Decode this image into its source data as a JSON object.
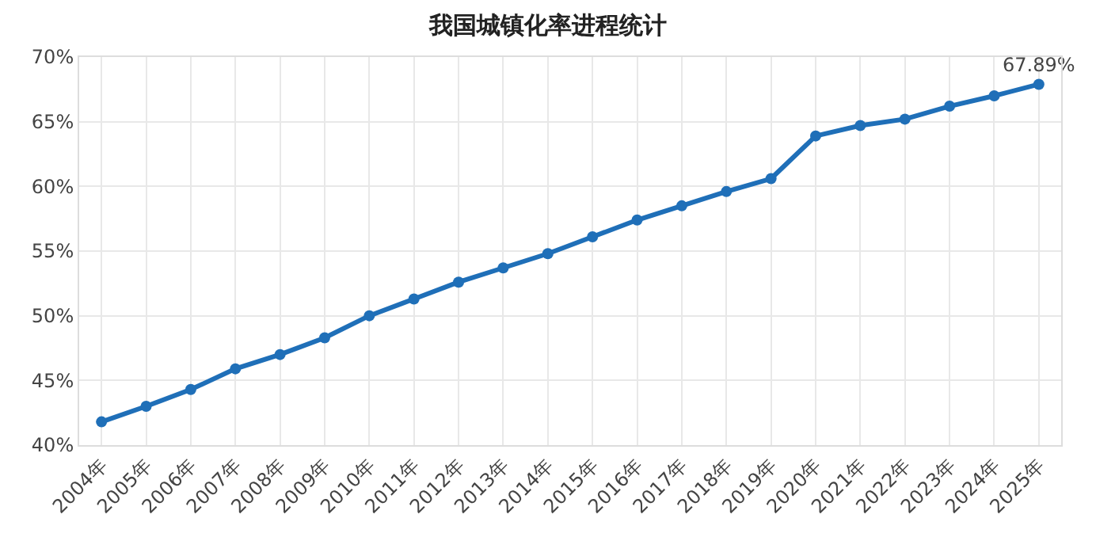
{
  "chart_data": {
    "type": "line",
    "title": "我国城镇化率进程统计",
    "categories": [
      "2004年",
      "2005年",
      "2006年",
      "2007年",
      "2008年",
      "2009年",
      "2010年",
      "2011年",
      "2012年",
      "2013年",
      "2014年",
      "2015年",
      "2016年",
      "2017年",
      "2018年",
      "2019年",
      "2020年",
      "2021年",
      "2022年",
      "2023年",
      "2024年",
      "2025年"
    ],
    "series": [
      {
        "color": "#1f6fb8",
        "values": [
          41.8,
          43.0,
          44.3,
          45.9,
          47.0,
          48.3,
          50.0,
          51.3,
          52.6,
          53.7,
          54.8,
          56.1,
          57.4,
          58.5,
          59.6,
          60.6,
          63.9,
          64.7,
          65.2,
          66.2,
          67.0,
          67.89
        ],
        "value_labels": [
          null,
          null,
          null,
          null,
          null,
          null,
          null,
          null,
          null,
          null,
          null,
          null,
          null,
          null,
          null,
          null,
          null,
          null,
          null,
          null,
          null,
          "67.89%"
        ]
      }
    ],
    "ylim": [
      40,
      70
    ],
    "yticks": [
      {
        "value": 40,
        "label": "40%"
      },
      {
        "value": 45,
        "label": "45%"
      },
      {
        "value": 50,
        "label": "50%"
      },
      {
        "value": 55,
        "label": "55%"
      },
      {
        "value": 60,
        "label": "60%"
      },
      {
        "value": 65,
        "label": "65%"
      },
      {
        "value": 70,
        "label": "70%"
      }
    ],
    "grid": true,
    "marker": "circle",
    "line_style": "solid"
  }
}
